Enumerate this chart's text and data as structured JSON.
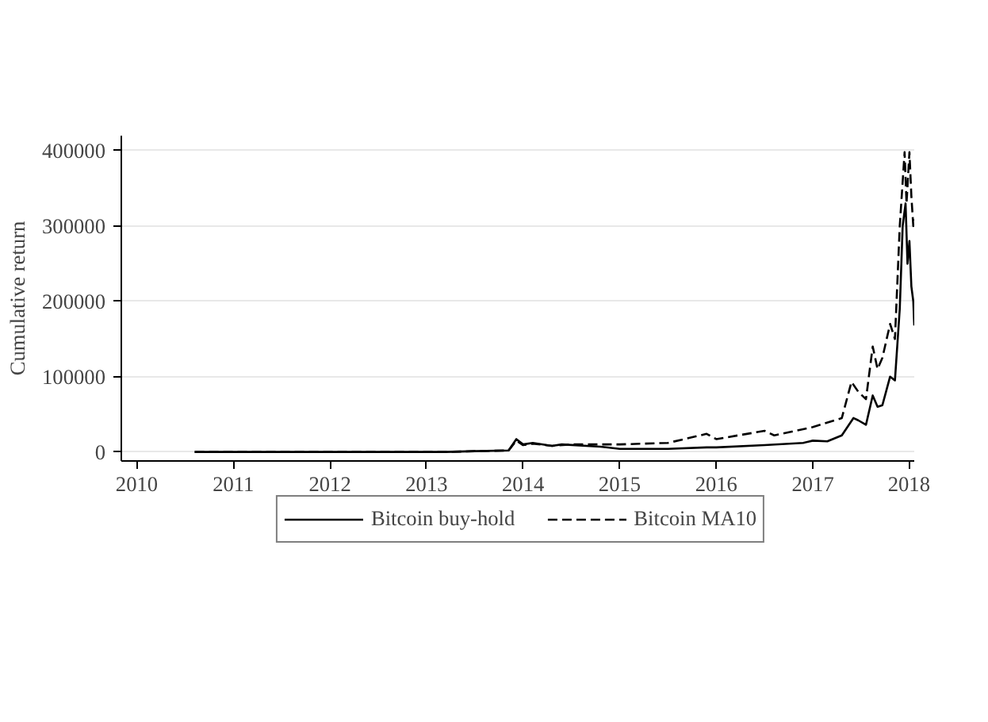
{
  "chart_data": {
    "type": "line",
    "ylabel": "Cumulative return",
    "xlim": [
      2009.84,
      2018.05
    ],
    "xticks": [
      2010,
      2011,
      2012,
      2013,
      2014,
      2015,
      2016,
      2017,
      2018
    ],
    "ylim": [
      -12000,
      420000
    ],
    "yticks": [
      0,
      100000,
      200000,
      300000,
      400000
    ],
    "grid": "y",
    "legend": "bottom",
    "series": [
      {
        "name": "Bitcoin buy-hold",
        "color": "#000000",
        "line_style": "solid",
        "x": [
          2010.6,
          2011.5,
          2012.5,
          2013.2,
          2013.5,
          2013.85,
          2013.93,
          2014.0,
          2014.1,
          2014.3,
          2014.4,
          2014.8,
          2015.0,
          2015.5,
          2015.9,
          2016.0,
          2016.5,
          2016.9,
          2017.0,
          2017.15,
          2017.3,
          2017.42,
          2017.47,
          2017.55,
          2017.62,
          2017.67,
          2017.72,
          2017.8,
          2017.85,
          2017.9,
          2017.93,
          2017.96,
          2017.98,
          2018.0,
          2018.02,
          2018.04,
          2018.05
        ],
        "values": [
          0,
          0,
          0,
          0,
          1000,
          2000,
          17000,
          10000,
          12000,
          8000,
          10000,
          7000,
          4000,
          4000,
          6000,
          6000,
          9000,
          12000,
          15000,
          14000,
          22000,
          45000,
          42000,
          36000,
          75000,
          60000,
          62000,
          100000,
          95000,
          190000,
          300000,
          330000,
          250000,
          280000,
          220000,
          200000,
          168000
        ]
      },
      {
        "name": "Bitcoin MA10",
        "color": "#000000",
        "line_style": "dashed",
        "x": [
          2010.6,
          2011.5,
          2012.5,
          2013.2,
          2013.5,
          2013.85,
          2013.93,
          2014.0,
          2014.1,
          2014.3,
          2014.5,
          2015.0,
          2015.5,
          2015.9,
          2016.0,
          2016.5,
          2016.6,
          2017.0,
          2017.3,
          2017.4,
          2017.47,
          2017.55,
          2017.62,
          2017.67,
          2017.72,
          2017.8,
          2017.85,
          2017.9,
          2017.95,
          2017.97,
          2018.0,
          2018.02,
          2018.04,
          2018.05
        ],
        "values": [
          0,
          0,
          0,
          0,
          1000,
          2000,
          15000,
          9000,
          11000,
          8000,
          10000,
          10000,
          12000,
          24000,
          17000,
          28000,
          22000,
          33000,
          45000,
          93000,
          80000,
          70000,
          140000,
          110000,
          125000,
          170000,
          150000,
          300000,
          398000,
          330000,
          398000,
          340000,
          300000,
          309000
        ]
      }
    ]
  }
}
